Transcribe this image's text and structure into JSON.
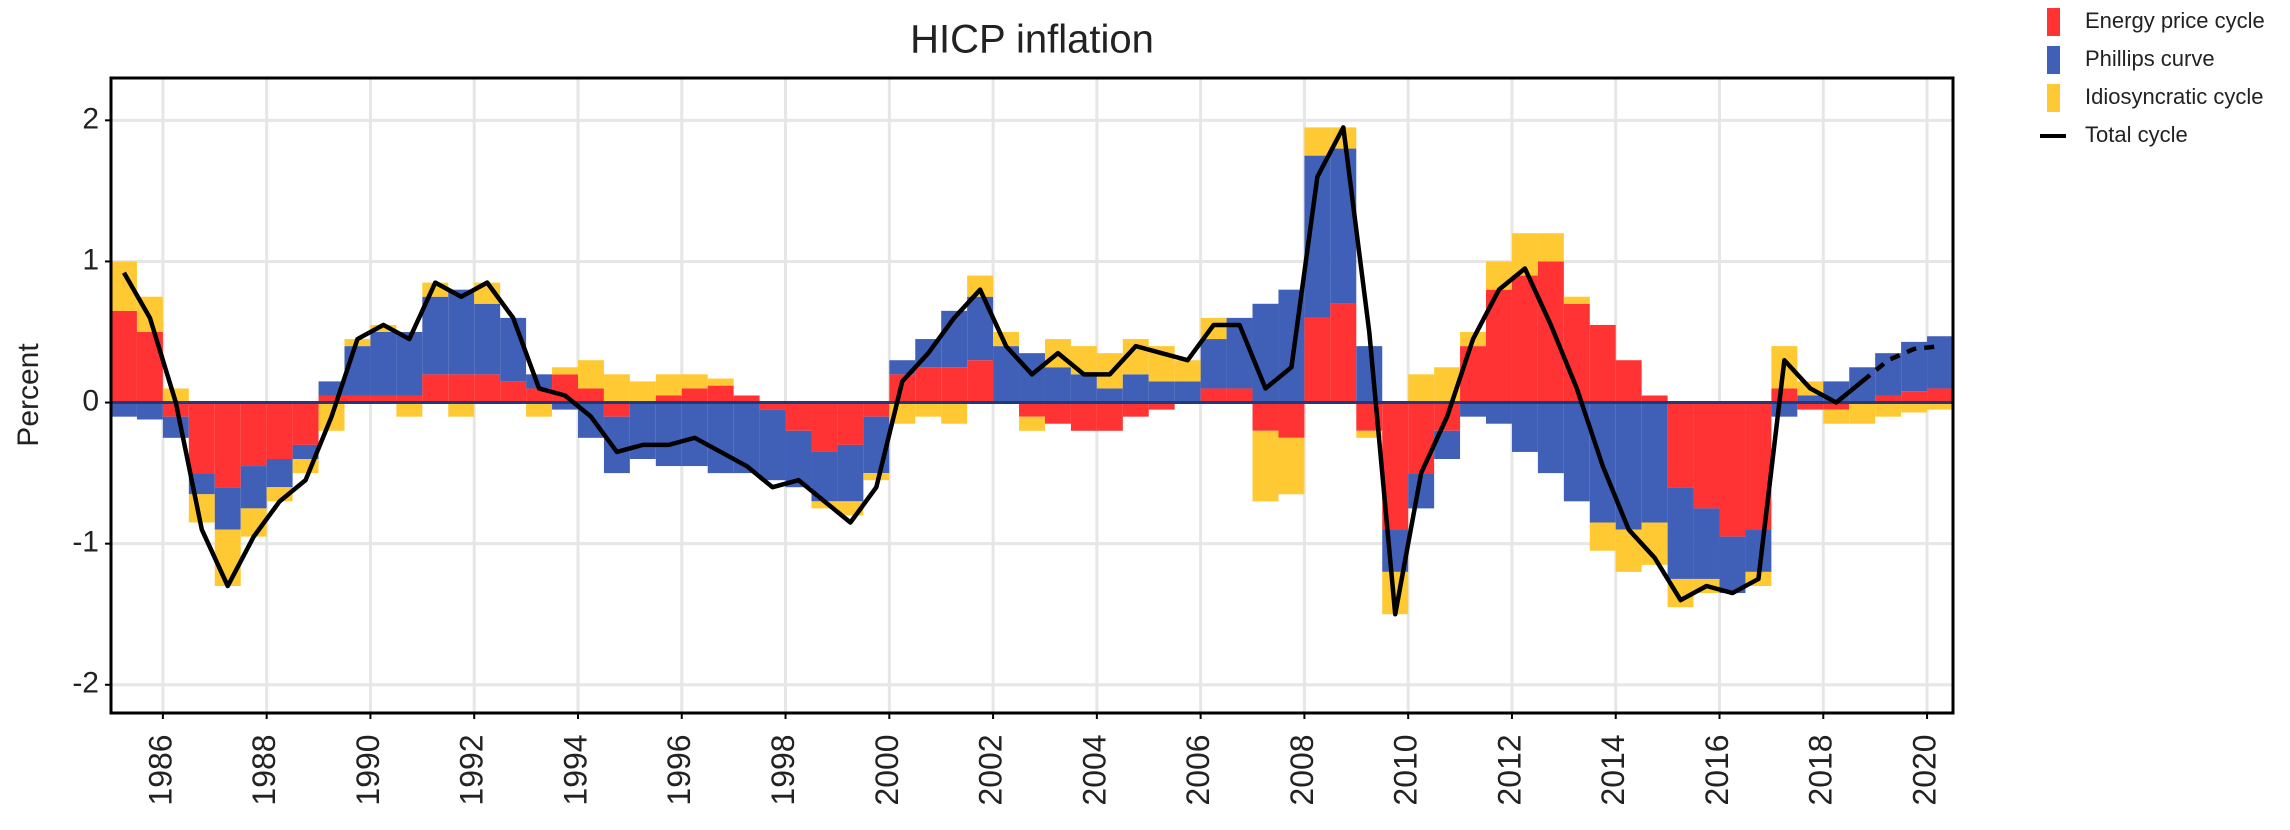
{
  "chart_data": {
    "type": "stacked-bar-line",
    "title": "HICP inflation",
    "y_label": "Percent",
    "x": [
      1985.0,
      1985.5,
      1986.0,
      1986.5,
      1987.0,
      1987.5,
      1988.0,
      1988.5,
      1989.0,
      1989.5,
      1990.0,
      1990.5,
      1991.0,
      1991.5,
      1992.0,
      1992.5,
      1993.0,
      1993.5,
      1994.0,
      1994.5,
      1995.0,
      1995.5,
      1996.0,
      1996.5,
      1997.0,
      1997.5,
      1998.0,
      1998.5,
      1999.0,
      1999.5,
      2000.0,
      2000.5,
      2001.0,
      2001.5,
      2002.0,
      2002.5,
      2003.0,
      2003.5,
      2004.0,
      2004.5,
      2005.0,
      2005.5,
      2006.0,
      2006.5,
      2007.0,
      2007.5,
      2008.0,
      2008.5,
      2009.0,
      2009.5,
      2010.0,
      2010.5,
      2011.0,
      2011.5,
      2012.0,
      2012.5,
      2013.0,
      2013.5,
      2014.0,
      2014.5,
      2015.0,
      2015.5,
      2016.0,
      2016.5,
      2017.0,
      2017.5,
      2018.0,
      2018.5,
      2019.0,
      2019.5,
      2020.0
    ],
    "series": [
      {
        "name": "Energy price cycle",
        "color": "#ff3333",
        "values": [
          0.65,
          0.5,
          -0.1,
          -0.5,
          -0.6,
          -0.45,
          -0.4,
          -0.3,
          0.05,
          0.05,
          0.05,
          0.05,
          0.2,
          0.2,
          0.2,
          0.15,
          0.1,
          0.2,
          0.1,
          -0.1,
          0.0,
          0.05,
          0.1,
          0.12,
          0.05,
          -0.05,
          -0.2,
          -0.35,
          -0.3,
          -0.1,
          0.2,
          0.25,
          0.25,
          0.3,
          0.0,
          -0.1,
          -0.15,
          -0.2,
          -0.2,
          -0.1,
          -0.05,
          0.0,
          0.1,
          0.1,
          -0.2,
          -0.25,
          0.6,
          0.7,
          -0.2,
          -0.9,
          -0.5,
          -0.2,
          0.4,
          0.8,
          0.9,
          1.0,
          0.7,
          0.55,
          0.3,
          0.05,
          -0.6,
          -0.75,
          -0.95,
          -0.9,
          0.1,
          -0.05,
          -0.05,
          0.0,
          0.05,
          0.08,
          0.1
        ]
      },
      {
        "name": "Phillips curve",
        "color": "#4060b8",
        "values": [
          -0.1,
          -0.12,
          -0.15,
          -0.15,
          -0.3,
          -0.3,
          -0.2,
          -0.1,
          0.1,
          0.35,
          0.45,
          0.45,
          0.55,
          0.6,
          0.5,
          0.45,
          0.1,
          -0.05,
          -0.25,
          -0.4,
          -0.4,
          -0.45,
          -0.45,
          -0.5,
          -0.5,
          -0.5,
          -0.4,
          -0.35,
          -0.4,
          -0.4,
          0.1,
          0.2,
          0.4,
          0.45,
          0.4,
          0.35,
          0.25,
          0.2,
          0.1,
          0.2,
          0.15,
          0.15,
          0.35,
          0.5,
          0.7,
          0.8,
          1.15,
          1.1,
          0.4,
          -0.3,
          -0.25,
          -0.2,
          -0.1,
          -0.15,
          -0.35,
          -0.5,
          -0.7,
          -0.85,
          -0.9,
          -0.85,
          -0.65,
          -0.5,
          -0.4,
          -0.3,
          -0.1,
          0.05,
          0.15,
          0.25,
          0.3,
          0.35,
          0.37
        ]
      },
      {
        "name": "Idiosyncratic cycle",
        "color": "#ffc933",
        "values": [
          0.35,
          0.25,
          0.1,
          -0.2,
          -0.4,
          -0.2,
          -0.1,
          -0.1,
          -0.2,
          0.05,
          0.05,
          -0.1,
          0.1,
          -0.1,
          0.15,
          0.0,
          -0.1,
          0.05,
          0.2,
          0.2,
          0.15,
          0.15,
          0.1,
          0.05,
          0.0,
          0.0,
          0.0,
          -0.05,
          -0.1,
          -0.05,
          -0.15,
          -0.1,
          -0.15,
          0.15,
          0.1,
          -0.1,
          0.2,
          0.2,
          0.25,
          0.25,
          0.25,
          0.15,
          0.15,
          0.0,
          -0.5,
          -0.4,
          0.2,
          0.15,
          -0.05,
          -0.3,
          0.2,
          0.25,
          0.1,
          0.2,
          0.3,
          0.2,
          0.05,
          -0.2,
          -0.3,
          -0.3,
          -0.2,
          -0.1,
          0.0,
          -0.1,
          0.3,
          0.1,
          -0.1,
          -0.15,
          -0.1,
          -0.07,
          -0.05
        ]
      }
    ],
    "line": {
      "name": "Total cycle",
      "color": "#000000",
      "dashed_after_x": 2018.5,
      "values": [
        0.92,
        0.6,
        0.0,
        -0.9,
        -1.3,
        -0.95,
        -0.7,
        -0.55,
        -0.1,
        0.45,
        0.55,
        0.45,
        0.85,
        0.75,
        0.85,
        0.6,
        0.1,
        0.05,
        -0.1,
        -0.35,
        -0.3,
        -0.3,
        -0.25,
        -0.35,
        -0.45,
        -0.6,
        -0.55,
        -0.7,
        -0.85,
        -0.6,
        0.15,
        0.35,
        0.6,
        0.8,
        0.4,
        0.2,
        0.35,
        0.2,
        0.2,
        0.4,
        0.35,
        0.3,
        0.55,
        0.55,
        0.1,
        0.25,
        1.6,
        1.95,
        0.5,
        -1.5,
        -0.5,
        -0.1,
        0.45,
        0.8,
        0.95,
        0.55,
        0.1,
        -0.45,
        -0.9,
        -1.1,
        -1.4,
        -1.3,
        -1.35,
        -1.25,
        0.3,
        0.1,
        0.0,
        0.15,
        0.3,
        0.38,
        0.4
      ]
    },
    "xlim": [
      1985.0,
      2020.5
    ],
    "xticks": [
      1986,
      1988,
      1990,
      1992,
      1994,
      1996,
      1998,
      2000,
      2002,
      2004,
      2006,
      2008,
      2010,
      2012,
      2014,
      2016,
      2018,
      2020
    ],
    "ylim": [
      -2.2,
      2.3
    ],
    "yticks": [
      -2,
      -1,
      0,
      1,
      2
    ],
    "grid": true
  }
}
